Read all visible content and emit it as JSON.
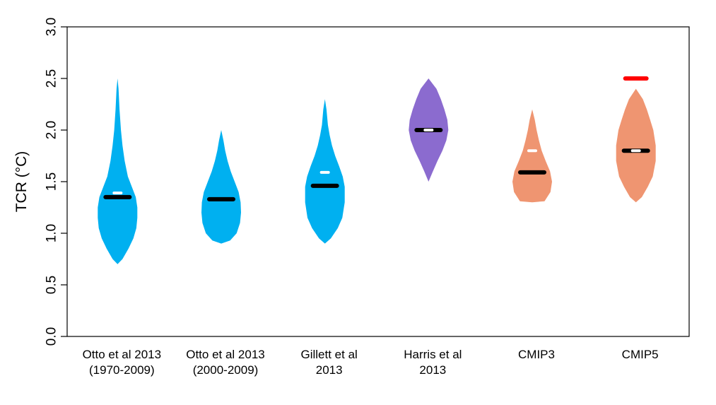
{
  "chart_data": {
    "type": "violin",
    "title": "",
    "xlabel": "",
    "ylabel": "TCR (°C)",
    "ylim": [
      0.0,
      3.0
    ],
    "yticks": [
      "0.0",
      "0.5",
      "1.0",
      "1.5",
      "2.0",
      "2.5",
      "3.0"
    ],
    "grid": false,
    "categories": [
      {
        "lines": [
          "Otto et al 2013",
          "(1970-2009)"
        ]
      },
      {
        "lines": [
          "Otto et al 2013",
          "(2000-2009)"
        ]
      },
      {
        "lines": [
          "Gillett et al",
          "2013"
        ]
      },
      {
        "lines": [
          "Harris et al",
          "2013"
        ]
      },
      {
        "lines": [
          "CMIP3"
        ]
      },
      {
        "lines": [
          "CMIP5"
        ]
      }
    ],
    "series": [
      {
        "name": "Otto et al 2013 (1970-2009)",
        "color": "#00b0f0",
        "min": 0.7,
        "max": 2.5,
        "median": 1.35,
        "mean": 1.39,
        "profile": [
          [
            0.7,
            0.0
          ],
          [
            0.75,
            0.25
          ],
          [
            0.85,
            0.55
          ],
          [
            0.95,
            0.8
          ],
          [
            1.05,
            0.95
          ],
          [
            1.15,
            1.0
          ],
          [
            1.25,
            1.0
          ],
          [
            1.35,
            0.92
          ],
          [
            1.45,
            0.72
          ],
          [
            1.55,
            0.52
          ],
          [
            1.7,
            0.36
          ],
          [
            1.85,
            0.25
          ],
          [
            2.0,
            0.17
          ],
          [
            2.2,
            0.1
          ],
          [
            2.4,
            0.05
          ],
          [
            2.5,
            0.0
          ]
        ]
      },
      {
        "name": "Otto et al 2013 (2000-2009)",
        "color": "#00b0f0",
        "min": 0.9,
        "max": 2.0,
        "median": 1.33,
        "profile": [
          [
            0.9,
            0.0
          ],
          [
            0.93,
            0.45
          ],
          [
            1.0,
            0.78
          ],
          [
            1.1,
            0.95
          ],
          [
            1.2,
            1.0
          ],
          [
            1.3,
            0.98
          ],
          [
            1.4,
            0.88
          ],
          [
            1.5,
            0.68
          ],
          [
            1.6,
            0.48
          ],
          [
            1.7,
            0.32
          ],
          [
            1.8,
            0.2
          ],
          [
            1.9,
            0.11
          ],
          [
            2.0,
            0.0
          ]
        ]
      },
      {
        "name": "Gillett et al 2013",
        "color": "#00b0f0",
        "min": 0.9,
        "max": 2.3,
        "median": 1.46,
        "mean": 1.59,
        "profile": [
          [
            0.9,
            0.0
          ],
          [
            0.95,
            0.3
          ],
          [
            1.05,
            0.65
          ],
          [
            1.15,
            0.88
          ],
          [
            1.3,
            1.0
          ],
          [
            1.45,
            1.0
          ],
          [
            1.55,
            0.9
          ],
          [
            1.65,
            0.72
          ],
          [
            1.75,
            0.52
          ],
          [
            1.85,
            0.36
          ],
          [
            1.95,
            0.24
          ],
          [
            2.05,
            0.15
          ],
          [
            2.2,
            0.08
          ],
          [
            2.3,
            0.0
          ]
        ]
      },
      {
        "name": "Harris et al 2013",
        "color": "#8b6bcf",
        "min": 1.5,
        "max": 2.5,
        "median": 2.0,
        "mean": 2.0,
        "profile": [
          [
            1.5,
            0.0
          ],
          [
            1.6,
            0.22
          ],
          [
            1.7,
            0.45
          ],
          [
            1.8,
            0.7
          ],
          [
            1.9,
            0.9
          ],
          [
            2.0,
            1.0
          ],
          [
            2.1,
            0.95
          ],
          [
            2.2,
            0.8
          ],
          [
            2.3,
            0.62
          ],
          [
            2.4,
            0.4
          ],
          [
            2.5,
            0.0
          ]
        ]
      },
      {
        "name": "CMIP3",
        "color": "#ef9571",
        "min": 1.3,
        "max": 2.2,
        "median": 1.59,
        "mean": 1.8,
        "profile": [
          [
            1.3,
            0.0
          ],
          [
            1.31,
            0.62
          ],
          [
            1.4,
            0.92
          ],
          [
            1.5,
            1.0
          ],
          [
            1.6,
            0.9
          ],
          [
            1.7,
            0.68
          ],
          [
            1.8,
            0.48
          ],
          [
            1.9,
            0.34
          ],
          [
            2.0,
            0.22
          ],
          [
            2.1,
            0.13
          ],
          [
            2.2,
            0.0
          ]
        ]
      },
      {
        "name": "CMIP5",
        "color": "#ef9571",
        "min": 1.3,
        "max": 2.4,
        "median": 1.8,
        "mean": 1.8,
        "marker": 2.5,
        "marker_color": "#ff0000",
        "profile": [
          [
            1.3,
            0.0
          ],
          [
            1.35,
            0.3
          ],
          [
            1.45,
            0.6
          ],
          [
            1.55,
            0.85
          ],
          [
            1.7,
            1.0
          ],
          [
            1.85,
            1.0
          ],
          [
            2.0,
            0.88
          ],
          [
            2.1,
            0.72
          ],
          [
            2.2,
            0.55
          ],
          [
            2.3,
            0.35
          ],
          [
            2.4,
            0.0
          ]
        ]
      }
    ]
  }
}
